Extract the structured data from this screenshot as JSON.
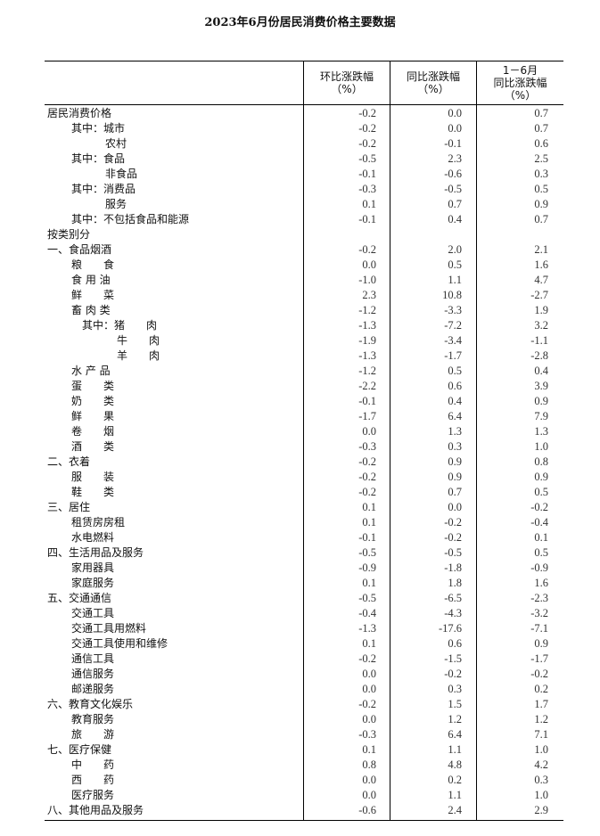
{
  "title": "2023年6月份居民消费价格主要数据",
  "headers": [
    {
      "lines": [
        "环比涨跌幅",
        "（%）"
      ]
    },
    {
      "lines": [
        "同比涨跌幅",
        "（%）"
      ]
    },
    {
      "lines": [
        "1－6月",
        "同比涨跌幅",
        "（%）"
      ]
    }
  ],
  "rows": [
    {
      "label": "居民消费价格",
      "indent": 0,
      "mom": "-0.2",
      "yoy": "0.0",
      "ytd": "0.7"
    },
    {
      "label": "其中：城市",
      "indent": 1,
      "mom": "-0.2",
      "yoy": "0.0",
      "ytd": "0.7"
    },
    {
      "label": "农村",
      "indent": 2,
      "mom": "-0.2",
      "yoy": "-0.1",
      "ytd": "0.6"
    },
    {
      "label": "其中：食品",
      "indent": 1,
      "mom": "-0.5",
      "yoy": "2.3",
      "ytd": "2.5"
    },
    {
      "label": "非食品",
      "indent": 2,
      "mom": "-0.1",
      "yoy": "-0.6",
      "ytd": "0.3"
    },
    {
      "label": "其中：消费品",
      "indent": 1,
      "mom": "-0.3",
      "yoy": "-0.5",
      "ytd": "0.5"
    },
    {
      "label": "服务",
      "indent": 2,
      "mom": "0.1",
      "yoy": "0.7",
      "ytd": "0.9"
    },
    {
      "label": "其中：不包括食品和能源",
      "indent": 1,
      "mom": "-0.1",
      "yoy": "0.4",
      "ytd": "0.7"
    },
    {
      "label": "按类别分",
      "indent": 0,
      "mom": "",
      "yoy": "",
      "ytd": ""
    },
    {
      "label": "一、食品烟酒",
      "indent": 0,
      "mom": "-0.2",
      "yoy": "2.0",
      "ytd": "2.1"
    },
    {
      "label": "粮　　食",
      "indent": 1,
      "mom": "0.0",
      "yoy": "0.5",
      "ytd": "1.6"
    },
    {
      "label": "食 用 油",
      "indent": 1,
      "mom": "-1.0",
      "yoy": "1.1",
      "ytd": "4.7"
    },
    {
      "label": "鲜　　菜",
      "indent": 1,
      "mom": "2.3",
      "yoy": "10.8",
      "ytd": "-2.7"
    },
    {
      "label": "畜 肉 类",
      "indent": 1,
      "mom": "-1.2",
      "yoy": "-3.3",
      "ytd": "1.9"
    },
    {
      "label": "其中：猪　　肉",
      "indent": 3,
      "mom": "-1.3",
      "yoy": "-7.2",
      "ytd": "3.2"
    },
    {
      "label": "牛　　肉",
      "indent": 4,
      "mom": "-1.9",
      "yoy": "-3.4",
      "ytd": "-1.1"
    },
    {
      "label": "羊　　肉",
      "indent": 4,
      "mom": "-1.3",
      "yoy": "-1.7",
      "ytd": "-2.8"
    },
    {
      "label": "水 产 品",
      "indent": 1,
      "mom": "-1.2",
      "yoy": "0.5",
      "ytd": "0.4"
    },
    {
      "label": "蛋　　类",
      "indent": 1,
      "mom": "-2.2",
      "yoy": "0.6",
      "ytd": "3.9"
    },
    {
      "label": "奶　　类",
      "indent": 1,
      "mom": "-0.1",
      "yoy": "0.4",
      "ytd": "0.9"
    },
    {
      "label": "鲜　　果",
      "indent": 1,
      "mom": "-1.7",
      "yoy": "6.4",
      "ytd": "7.9"
    },
    {
      "label": "卷　　烟",
      "indent": 1,
      "mom": "0.0",
      "yoy": "1.3",
      "ytd": "1.3"
    },
    {
      "label": "酒　　类",
      "indent": 1,
      "mom": "-0.3",
      "yoy": "0.3",
      "ytd": "1.0"
    },
    {
      "label": "二、衣着",
      "indent": 0,
      "mom": "-0.2",
      "yoy": "0.9",
      "ytd": "0.8"
    },
    {
      "label": "服　　装",
      "indent": 1,
      "mom": "-0.2",
      "yoy": "0.9",
      "ytd": "0.9"
    },
    {
      "label": "鞋　　类",
      "indent": 1,
      "mom": "-0.2",
      "yoy": "0.7",
      "ytd": "0.5"
    },
    {
      "label": "三、居住",
      "indent": 0,
      "mom": "0.1",
      "yoy": "0.0",
      "ytd": "-0.2"
    },
    {
      "label": "租赁房房租",
      "indent": 1,
      "mom": "0.1",
      "yoy": "-0.2",
      "ytd": "-0.4"
    },
    {
      "label": "水电燃料",
      "indent": 1,
      "mom": "-0.1",
      "yoy": "-0.2",
      "ytd": "0.1"
    },
    {
      "label": "四、生活用品及服务",
      "indent": 0,
      "mom": "-0.5",
      "yoy": "-0.5",
      "ytd": "0.5"
    },
    {
      "label": "家用器具",
      "indent": 1,
      "mom": "-0.9",
      "yoy": "-1.8",
      "ytd": "-0.9"
    },
    {
      "label": "家庭服务",
      "indent": 1,
      "mom": "0.1",
      "yoy": "1.8",
      "ytd": "1.6"
    },
    {
      "label": "五、交通通信",
      "indent": 0,
      "mom": "-0.5",
      "yoy": "-6.5",
      "ytd": "-2.3"
    },
    {
      "label": "交通工具",
      "indent": 1,
      "mom": "-0.4",
      "yoy": "-4.3",
      "ytd": "-3.2"
    },
    {
      "label": "交通工具用燃料",
      "indent": 1,
      "mom": "-1.3",
      "yoy": "-17.6",
      "ytd": "-7.1"
    },
    {
      "label": "交通工具使用和维修",
      "indent": 1,
      "mom": "0.1",
      "yoy": "0.6",
      "ytd": "0.9"
    },
    {
      "label": "通信工具",
      "indent": 1,
      "mom": "-0.2",
      "yoy": "-1.5",
      "ytd": "-1.7"
    },
    {
      "label": "通信服务",
      "indent": 1,
      "mom": "0.0",
      "yoy": "-0.2",
      "ytd": "-0.2"
    },
    {
      "label": "邮递服务",
      "indent": 1,
      "mom": "0.0",
      "yoy": "0.3",
      "ytd": "0.2"
    },
    {
      "label": "六、教育文化娱乐",
      "indent": 0,
      "mom": "-0.2",
      "yoy": "1.5",
      "ytd": "1.7"
    },
    {
      "label": "教育服务",
      "indent": 1,
      "mom": "0.0",
      "yoy": "1.2",
      "ytd": "1.2"
    },
    {
      "label": "旅　　游",
      "indent": 1,
      "mom": "-0.3",
      "yoy": "6.4",
      "ytd": "7.1"
    },
    {
      "label": "七、医疗保健",
      "indent": 0,
      "mom": "0.1",
      "yoy": "1.1",
      "ytd": "1.0"
    },
    {
      "label": "中　　药",
      "indent": 1,
      "mom": "0.8",
      "yoy": "4.8",
      "ytd": "4.2"
    },
    {
      "label": "西　　药",
      "indent": 1,
      "mom": "0.0",
      "yoy": "0.2",
      "ytd": "0.3"
    },
    {
      "label": "医疗服务",
      "indent": 1,
      "mom": "0.0",
      "yoy": "1.1",
      "ytd": "1.0"
    },
    {
      "label": "八、其他用品及服务",
      "indent": 0,
      "mom": "-0.6",
      "yoy": "2.4",
      "ytd": "2.9"
    }
  ]
}
